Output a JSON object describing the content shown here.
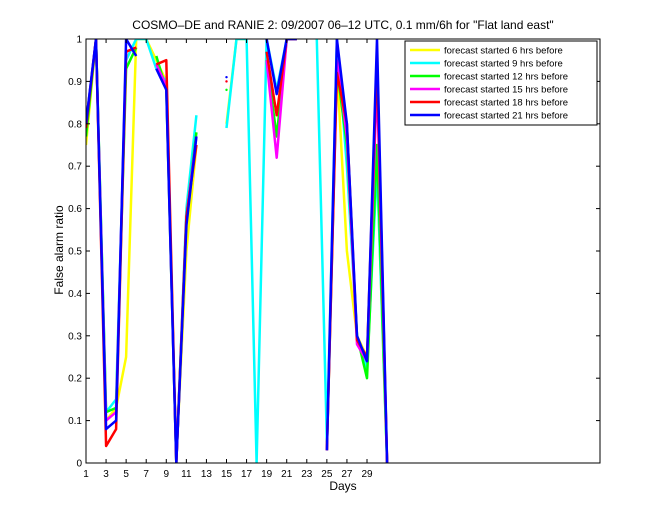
{
  "chart_data": {
    "type": "line",
    "title": "COSMO–DE and RANIE 2: 09/2007 06–12 UTC, 0.1 mm/6h for \"Flat land east\"",
    "xlabel": "Days",
    "ylabel": "False alarm ratio",
    "xlim": [
      1,
      31
    ],
    "ylim": [
      0,
      1
    ],
    "x_ticks": [
      1,
      3,
      5,
      7,
      9,
      11,
      13,
      15,
      17,
      19,
      21,
      23,
      25,
      27,
      29
    ],
    "y_ticks": [
      0,
      0.1,
      0.2,
      0.3,
      0.4,
      0.5,
      0.6,
      0.7,
      0.8,
      0.9,
      1
    ],
    "x_tick_labels": [
      "1",
      "3",
      "5",
      "7",
      "9",
      "11",
      "13",
      "15",
      "17",
      "19",
      "21",
      "23",
      "25",
      "27",
      "29"
    ],
    "y_tick_labels": [
      "0",
      "0.1",
      "0.2",
      "0.3",
      "0.4",
      "0.5",
      "0.6",
      "0.7",
      "0.8",
      "0.9",
      "1"
    ],
    "grid": false,
    "legend_position": "top-right",
    "series": [
      {
        "name": "forecast started 6 hrs before",
        "color": "#ffff00",
        "values": [
          0.75,
          1.0,
          0.1,
          0.13,
          0.25,
          1.0,
          1.0,
          0.95,
          0.9,
          0.01,
          0.5,
          0.75,
          null,
          null,
          0.8,
          1.0,
          1.0,
          null,
          null,
          null,
          null,
          null,
          null,
          null,
          null,
          0.94,
          0.5,
          0.3,
          0.25,
          0.7,
          0.0
        ]
      },
      {
        "name": "forecast started 9 hrs before",
        "color": "#00ffff",
        "values": [
          0.8,
          1.0,
          0.12,
          0.15,
          0.95,
          1.0,
          1.0,
          0.93,
          0.9,
          0.0,
          0.6,
          0.82,
          null,
          null,
          0.79,
          1.0,
          1.0,
          0.0,
          1.0,
          0.88,
          1.0,
          1.0,
          null,
          1.0,
          0.05,
          1.0,
          0.7,
          0.3,
          0.22,
          0.7,
          0.0
        ]
      },
      {
        "name": "forecast started 12 hrs before",
        "color": "#00ff00",
        "values": [
          0.77,
          1.0,
          0.12,
          0.13,
          0.93,
          0.98,
          null,
          0.96,
          0.88,
          0.0,
          0.58,
          0.78,
          null,
          null,
          0.88,
          null,
          null,
          null,
          0.95,
          0.77,
          1.0,
          1.0,
          null,
          null,
          0.03,
          0.93,
          0.75,
          0.3,
          0.2,
          0.75,
          0.0
        ]
      },
      {
        "name": "forecast started 15 hrs before",
        "color": "#ff00ff",
        "values": [
          0.8,
          1.0,
          0.1,
          0.12,
          0.97,
          0.98,
          null,
          0.94,
          0.89,
          0.0,
          0.58,
          0.77,
          null,
          null,
          0.9,
          null,
          null,
          null,
          0.95,
          0.72,
          1.0,
          1.0,
          null,
          null,
          0.03,
          0.95,
          0.77,
          0.28,
          0.24,
          0.9,
          0.0
        ]
      },
      {
        "name": "forecast started 18 hrs before",
        "color": "#ff0000",
        "values": [
          0.79,
          1.0,
          0.04,
          0.08,
          0.97,
          0.98,
          null,
          0.94,
          0.95,
          0.0,
          0.58,
          0.75,
          null,
          null,
          0.9,
          null,
          null,
          null,
          0.97,
          0.82,
          1.0,
          1.0,
          null,
          null,
          0.03,
          0.92,
          0.8,
          0.29,
          0.25,
          0.95,
          0.0
        ]
      },
      {
        "name": "forecast started 21 hrs before",
        "color": "#0000ff",
        "values": [
          0.8,
          1.0,
          0.08,
          0.1,
          1.0,
          0.96,
          null,
          0.93,
          0.88,
          0.0,
          0.56,
          0.77,
          null,
          null,
          0.91,
          null,
          null,
          null,
          1.0,
          0.87,
          1.0,
          1.0,
          null,
          null,
          0.03,
          1.0,
          0.8,
          0.3,
          0.24,
          1.0,
          0.0
        ]
      }
    ]
  }
}
